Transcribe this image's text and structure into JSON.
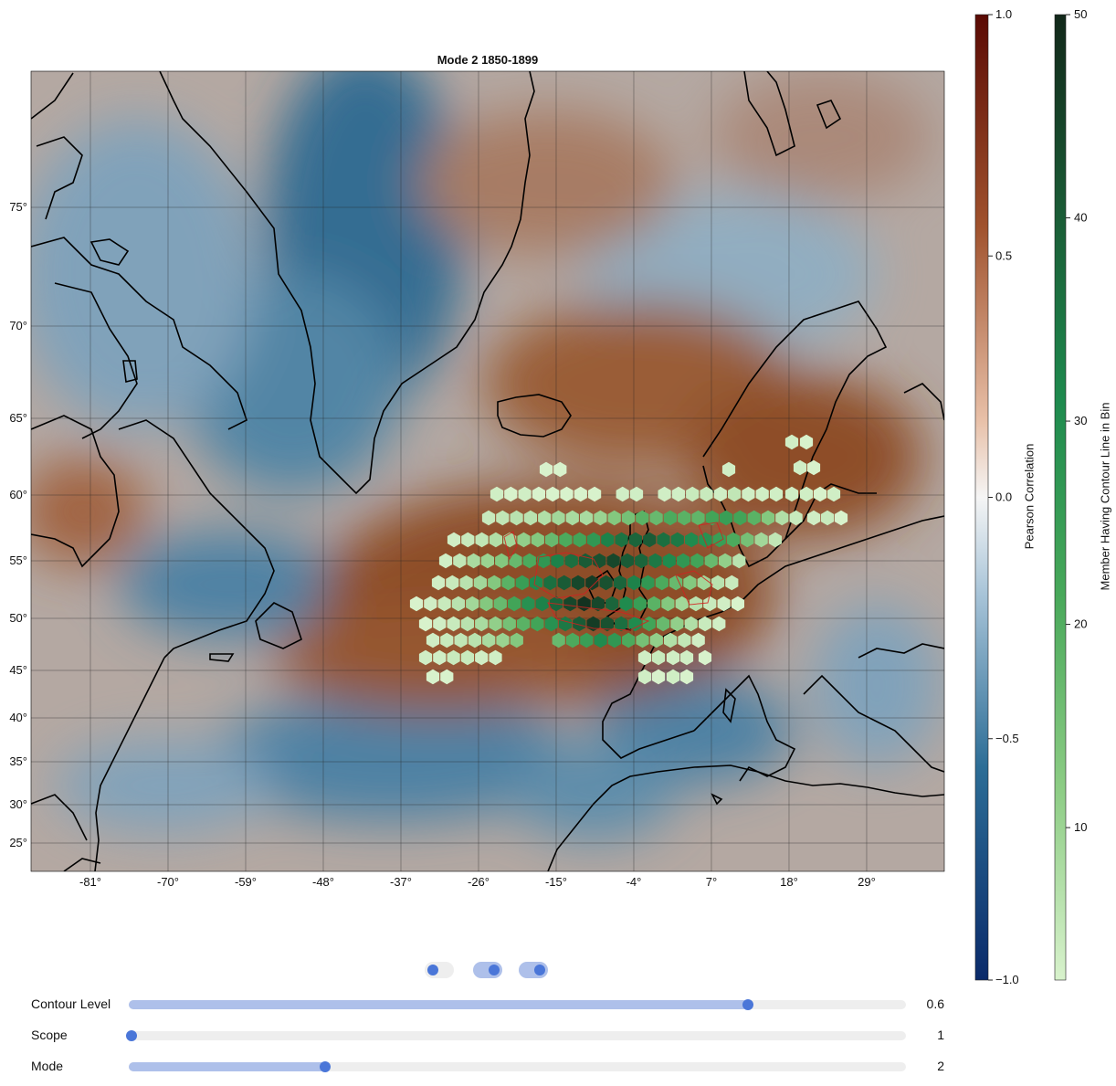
{
  "map": {
    "title": "Mode 2 1850-1899",
    "lon_ticks": [
      "-81°",
      "-70°",
      "-59°",
      "-48°",
      "-37°",
      "-26°",
      "-15°",
      "-4°",
      "7°",
      "18°",
      "29°"
    ],
    "lat_ticks": [
      "75°",
      "70°",
      "65°",
      "60°",
      "55°",
      "50°",
      "45°",
      "40°",
      "35°",
      "30°",
      "25°"
    ],
    "lon_values": [
      -81,
      -70,
      -59,
      -48,
      -37,
      -26,
      -15,
      -4,
      7,
      18,
      29
    ],
    "lat_values": [
      75,
      70,
      65,
      60,
      55,
      50,
      45,
      40,
      35,
      30,
      25
    ],
    "extent": {
      "lon": [
        -92,
        37
      ],
      "lat": [
        22,
        83
      ]
    }
  },
  "colorbars": {
    "correlation": {
      "label": "Pearson Correlation",
      "ticks": [
        "1.0",
        "0.5",
        "0.0",
        "−0.5",
        "−1.0"
      ],
      "values": [
        1.0,
        0.5,
        0.0,
        -0.5,
        -1.0
      ],
      "colors": [
        "#5a0a04",
        "#a0522d",
        "#e8c0a8",
        "#f2f2f2",
        "#a8c4d8",
        "#2c6d96",
        "#0a2a6a"
      ]
    },
    "members": {
      "label": "Member Having Contour Line in Bin",
      "ticks": [
        "50",
        "40",
        "30",
        "20",
        "10"
      ],
      "values": [
        50,
        40,
        30,
        20,
        10
      ],
      "colors": [
        "#12281a",
        "#1a5a35",
        "#1e8a4e",
        "#48a85a",
        "#8ccc84",
        "#d8f2cc"
      ]
    }
  },
  "toggles": [
    {
      "name": "toggle-1",
      "on": false
    },
    {
      "name": "toggle-2",
      "on": true
    },
    {
      "name": "toggle-3",
      "on": true
    }
  ],
  "sliders": [
    {
      "label": "Contour Level",
      "value": "0.6",
      "fraction": 0.797
    },
    {
      "label": "Scope",
      "value": "1",
      "fraction": 0.0
    },
    {
      "label": "Mode",
      "value": "2",
      "fraction": 0.253
    }
  ]
}
